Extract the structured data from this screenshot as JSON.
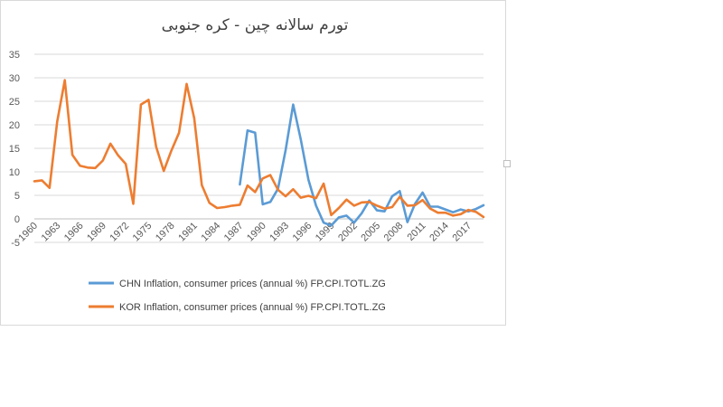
{
  "chart_data": {
    "type": "line",
    "title": "تورم سالانه چین - کره جنوبی",
    "xlabel": "",
    "ylabel": "",
    "ylim": [
      -5,
      35
    ],
    "yticks": [
      -5,
      0,
      5,
      10,
      15,
      20,
      25,
      30,
      35
    ],
    "xlim": [
      1960,
      2019
    ],
    "xticks": [
      1960,
      1963,
      1966,
      1969,
      1972,
      1975,
      1978,
      1981,
      1984,
      1987,
      1990,
      1993,
      1996,
      1999,
      2002,
      2005,
      2008,
      2011,
      2014,
      2017
    ],
    "grid": true,
    "legend_position": "bottom",
    "x": [
      1960,
      1961,
      1962,
      1963,
      1964,
      1965,
      1966,
      1967,
      1968,
      1969,
      1970,
      1971,
      1972,
      1973,
      1974,
      1975,
      1976,
      1977,
      1978,
      1979,
      1980,
      1981,
      1982,
      1983,
      1984,
      1985,
      1986,
      1987,
      1988,
      1989,
      1990,
      1991,
      1992,
      1993,
      1994,
      1995,
      1996,
      1997,
      1998,
      1999,
      2000,
      2001,
      2002,
      2003,
      2004,
      2005,
      2006,
      2007,
      2008,
      2009,
      2010,
      2011,
      2012,
      2013,
      2014,
      2015,
      2016,
      2017,
      2018,
      2019
    ],
    "series": [
      {
        "name": "CHN Inflation, consumer prices (annual %) FP.CPI.TOTL.ZG",
        "color": "#5b9bd5",
        "values": [
          null,
          null,
          null,
          null,
          null,
          null,
          null,
          null,
          null,
          null,
          null,
          null,
          null,
          null,
          null,
          null,
          null,
          null,
          null,
          null,
          null,
          null,
          null,
          null,
          null,
          null,
          null,
          7.3,
          18.8,
          18.3,
          3.1,
          3.6,
          6.4,
          14.6,
          24.3,
          16.9,
          8.3,
          2.8,
          -0.8,
          -1.4,
          0.3,
          0.7,
          -0.8,
          1.2,
          3.9,
          1.8,
          1.6,
          4.8,
          5.9,
          -0.7,
          3.2,
          5.6,
          2.6,
          2.6,
          2.0,
          1.4,
          2.0,
          1.6,
          2.1,
          2.9
        ]
      },
      {
        "name": "KOR Inflation, consumer prices (annual %) FP.CPI.TOTL.ZG",
        "color": "#ed7d31",
        "values": [
          8.0,
          8.2,
          6.6,
          20.7,
          29.5,
          13.6,
          11.3,
          10.9,
          10.8,
          12.4,
          16.0,
          13.5,
          11.7,
          3.2,
          24.3,
          25.3,
          15.3,
          10.2,
          14.5,
          18.3,
          28.7,
          21.4,
          7.2,
          3.4,
          2.3,
          2.5,
          2.8,
          3.0,
          7.1,
          5.7,
          8.6,
          9.3,
          6.2,
          4.8,
          6.3,
          4.5,
          4.9,
          4.4,
          7.5,
          0.8,
          2.3,
          4.1,
          2.8,
          3.5,
          3.6,
          2.8,
          2.2,
          2.5,
          4.7,
          2.8,
          2.9,
          4.0,
          2.2,
          1.3,
          1.3,
          0.7,
          1.0,
          1.9,
          1.5,
          0.4
        ]
      }
    ]
  }
}
